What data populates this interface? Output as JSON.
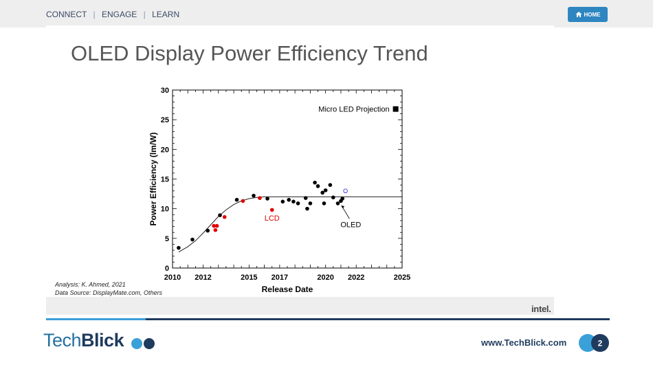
{
  "nav": {
    "items": [
      "CONNECT",
      "ENGAGE",
      "LEARN"
    ]
  },
  "home_button": {
    "label": "HOME",
    "icon": "home-icon"
  },
  "slide": {
    "title": "OLED Display Power Efficiency Trend",
    "analysis_note": "Analysis: K. Ahmed, 2021",
    "source_note": "Data Source: DisplayMate.com, Others",
    "footer_logo": "intel."
  },
  "footer": {
    "brand_part1": "Tech",
    "brand_part2": "Blick",
    "website": "www.TechBlick.com",
    "page_number": "2"
  },
  "colors": {
    "accent": "#2e86c1",
    "navy": "#1f3b5e",
    "oled": "#000000",
    "lcd": "#e00000",
    "projection": "#3a3ad0"
  },
  "chart_data": {
    "type": "scatter",
    "xlabel": "Release Date",
    "ylabel": "Power Efficiency (lm/W)",
    "xticks": [
      "2010",
      "2012",
      "2015",
      "2017",
      "2020",
      "2022",
      "2025"
    ],
    "yticks": [
      "0",
      "5",
      "10",
      "15",
      "20",
      "25",
      "30"
    ],
    "xlim": [
      2010,
      2025
    ],
    "ylim": [
      0,
      30
    ],
    "legend": {
      "label": "Micro LED Projection",
      "position": "top-right"
    },
    "annotations": [
      {
        "text": "LCD",
        "x": 2016.5,
        "y": 8.6
      },
      {
        "text": "OLED",
        "x": 2021.2,
        "y": 7.5
      }
    ],
    "series": [
      {
        "name": "OLED",
        "color": "#000000",
        "points": [
          [
            2010.4,
            3.4
          ],
          [
            2011.3,
            4.8
          ],
          [
            2012.3,
            6.3
          ],
          [
            2013.1,
            8.9
          ],
          [
            2014.2,
            11.5
          ],
          [
            2015.3,
            12.2
          ],
          [
            2016.2,
            11.7
          ],
          [
            2017.2,
            11.2
          ],
          [
            2017.6,
            11.5
          ],
          [
            2017.9,
            11.2
          ],
          [
            2018.2,
            10.9
          ],
          [
            2018.7,
            11.8
          ],
          [
            2018.8,
            10.0
          ],
          [
            2019.0,
            10.9
          ],
          [
            2019.3,
            14.4
          ],
          [
            2019.5,
            13.8
          ],
          [
            2019.8,
            12.7
          ],
          [
            2019.9,
            10.9
          ],
          [
            2020.0,
            13.1
          ],
          [
            2020.3,
            14.0
          ],
          [
            2020.5,
            11.9
          ],
          [
            2020.8,
            10.9
          ],
          [
            2021.0,
            11.3
          ],
          [
            2021.1,
            11.7
          ]
        ]
      },
      {
        "name": "LCD",
        "color": "#e00000",
        "points": [
          [
            2012.7,
            7.1
          ],
          [
            2012.8,
            6.4
          ],
          [
            2012.9,
            7.1
          ],
          [
            2013.4,
            8.6
          ],
          [
            2014.6,
            11.3
          ],
          [
            2015.7,
            11.8
          ],
          [
            2016.5,
            9.8
          ]
        ]
      },
      {
        "name": "Projection",
        "color": "#3a3ad0",
        "hollow": true,
        "points": [
          [
            2021.3,
            13.0
          ]
        ]
      }
    ],
    "fit_curve": [
      [
        2010.4,
        2.7
      ],
      [
        2011,
        3.6
      ],
      [
        2011.5,
        4.6
      ],
      [
        2012,
        5.9
      ],
      [
        2012.5,
        7.3
      ],
      [
        2013,
        8.7
      ],
      [
        2013.5,
        9.8
      ],
      [
        2014,
        10.7
      ],
      [
        2014.5,
        11.3
      ],
      [
        2015,
        11.7
      ],
      [
        2015.5,
        11.9
      ],
      [
        2016,
        12.0
      ],
      [
        2017,
        12.0
      ],
      [
        2018,
        12.0
      ],
      [
        2020,
        12.0
      ],
      [
        2022,
        12.0
      ],
      [
        2024,
        12.0
      ],
      [
        2025.3,
        12.0
      ]
    ]
  }
}
